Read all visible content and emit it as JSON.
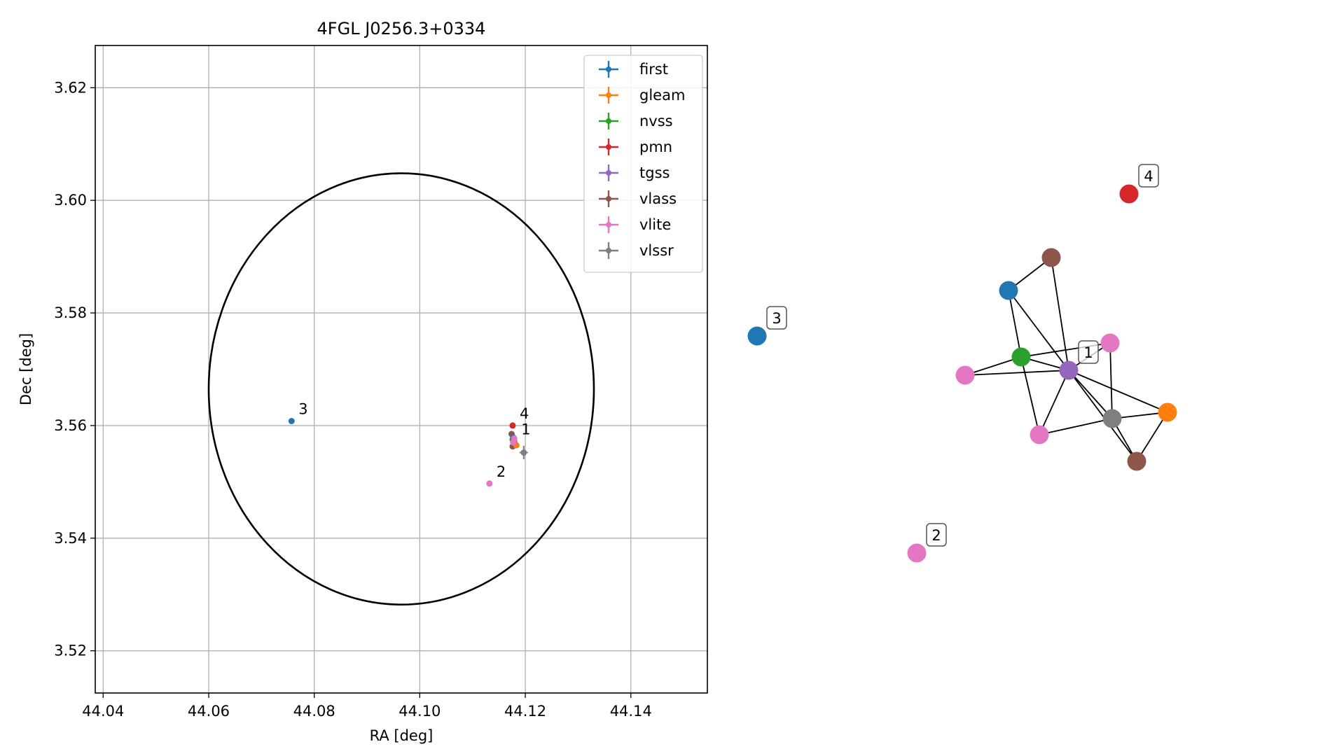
{
  "chart_data": [
    {
      "type": "scatter",
      "title": "4FGL J0256.3+0334",
      "xlabel": "RA [deg]",
      "ylabel": "Dec [deg]",
      "xlim": [
        44.0385,
        44.1545
      ],
      "ylim": [
        3.5125,
        3.6275
      ],
      "xticks": [
        "44.04",
        "44.06",
        "44.08",
        "44.10",
        "44.12",
        "44.14"
      ],
      "yticks": [
        "3.52",
        "3.54",
        "3.56",
        "3.58",
        "3.60",
        "3.62"
      ],
      "grid": true,
      "legend_position": "top-right",
      "legend": [
        {
          "name": "first",
          "color": "#1f77b4"
        },
        {
          "name": "gleam",
          "color": "#ff7f0e"
        },
        {
          "name": "nvss",
          "color": "#2ca02c"
        },
        {
          "name": "pmn",
          "color": "#d62728"
        },
        {
          "name": "tgss",
          "color": "#9467bd"
        },
        {
          "name": "vlass",
          "color": "#8c564b"
        },
        {
          "name": "vlite",
          "color": "#e377c2"
        },
        {
          "name": "vlssr",
          "color": "#7f7f7f"
        }
      ],
      "ellipse": {
        "center_ra": 44.0965,
        "center_dec": 3.5665,
        "semi_axis_ra": 0.0365,
        "semi_axis_dec": 0.0383,
        "color": "#000000"
      },
      "points": [
        {
          "survey": "first",
          "ra": 44.0757,
          "dec": 3.5608,
          "label": "3"
        },
        {
          "survey": "pmn",
          "ra": 44.1176,
          "dec": 3.56,
          "label": "4"
        },
        {
          "survey": "vlass",
          "ra": 44.1174,
          "dec": 3.5585,
          "label": ""
        },
        {
          "survey": "vlass",
          "ra": 44.1176,
          "dec": 3.5563,
          "label": ""
        },
        {
          "survey": "nvss",
          "ra": 44.1176,
          "dec": 3.5575,
          "label": ""
        },
        {
          "survey": "first",
          "ra": 44.1177,
          "dec": 3.5579,
          "label": ""
        },
        {
          "survey": "gleam",
          "ra": 44.1183,
          "dec": 3.5565,
          "label": ""
        },
        {
          "survey": "tgss",
          "ra": 44.1179,
          "dec": 3.5572,
          "label": "1"
        },
        {
          "survey": "vlite",
          "ra": 44.1179,
          "dec": 3.5577,
          "label": ""
        },
        {
          "survey": "vlite",
          "ra": 44.1177,
          "dec": 3.557,
          "label": ""
        },
        {
          "survey": "vlite",
          "ra": 44.1132,
          "dec": 3.5497,
          "label": "2"
        },
        {
          "survey": "vlssr",
          "ra": 44.1197,
          "dec": 3.5552,
          "label": "",
          "err_ra": 0.0008,
          "err_dec": 0.0012
        }
      ]
    },
    {
      "type": "network-graph",
      "nodes": [
        {
          "id": "n3",
          "color": "#1f77b4",
          "label": "3"
        },
        {
          "id": "n4",
          "color": "#d62728",
          "label": "4"
        },
        {
          "id": "n2",
          "color": "#e377c2",
          "label": "2"
        },
        {
          "id": "n1",
          "color": "#9467bd",
          "label": "1"
        },
        {
          "id": "nvlass_a",
          "color": "#8c564b",
          "label": ""
        },
        {
          "id": "nfirst",
          "color": "#1f77b4",
          "label": ""
        },
        {
          "id": "nnvss",
          "color": "#2ca02c",
          "label": ""
        },
        {
          "id": "nvlite_a",
          "color": "#e377c2",
          "label": ""
        },
        {
          "id": "nvlite_b",
          "color": "#e377c2",
          "label": ""
        },
        {
          "id": "nvlite_c",
          "color": "#e377c2",
          "label": ""
        },
        {
          "id": "nvlssr",
          "color": "#7f7f7f",
          "label": ""
        },
        {
          "id": "ngleam",
          "color": "#ff7f0e",
          "label": ""
        },
        {
          "id": "nvlass_b",
          "color": "#8c564b",
          "label": ""
        }
      ],
      "edges": [
        [
          "nfirst",
          "nvlass_a"
        ],
        [
          "nfirst",
          "nnvss"
        ],
        [
          "nfirst",
          "n1"
        ],
        [
          "nvlass_a",
          "n1"
        ],
        [
          "nnvss",
          "nvlite_a"
        ],
        [
          "nnvss",
          "nvlite_b"
        ],
        [
          "nnvss",
          "nvlite_c"
        ],
        [
          "nnvss",
          "n1"
        ],
        [
          "nvlite_a",
          "n1"
        ],
        [
          "nvlite_b",
          "n1"
        ],
        [
          "nvlite_c",
          "n1"
        ],
        [
          "nvlite_c",
          "nvlssr"
        ],
        [
          "nvlite_b",
          "nvlssr"
        ],
        [
          "n1",
          "nvlssr"
        ],
        [
          "n1",
          "ngleam"
        ],
        [
          "n1",
          "nvlass_b"
        ],
        [
          "nvlssr",
          "ngleam"
        ],
        [
          "nvlssr",
          "nvlass_b"
        ],
        [
          "ngleam",
          "nvlass_b"
        ]
      ]
    }
  ]
}
